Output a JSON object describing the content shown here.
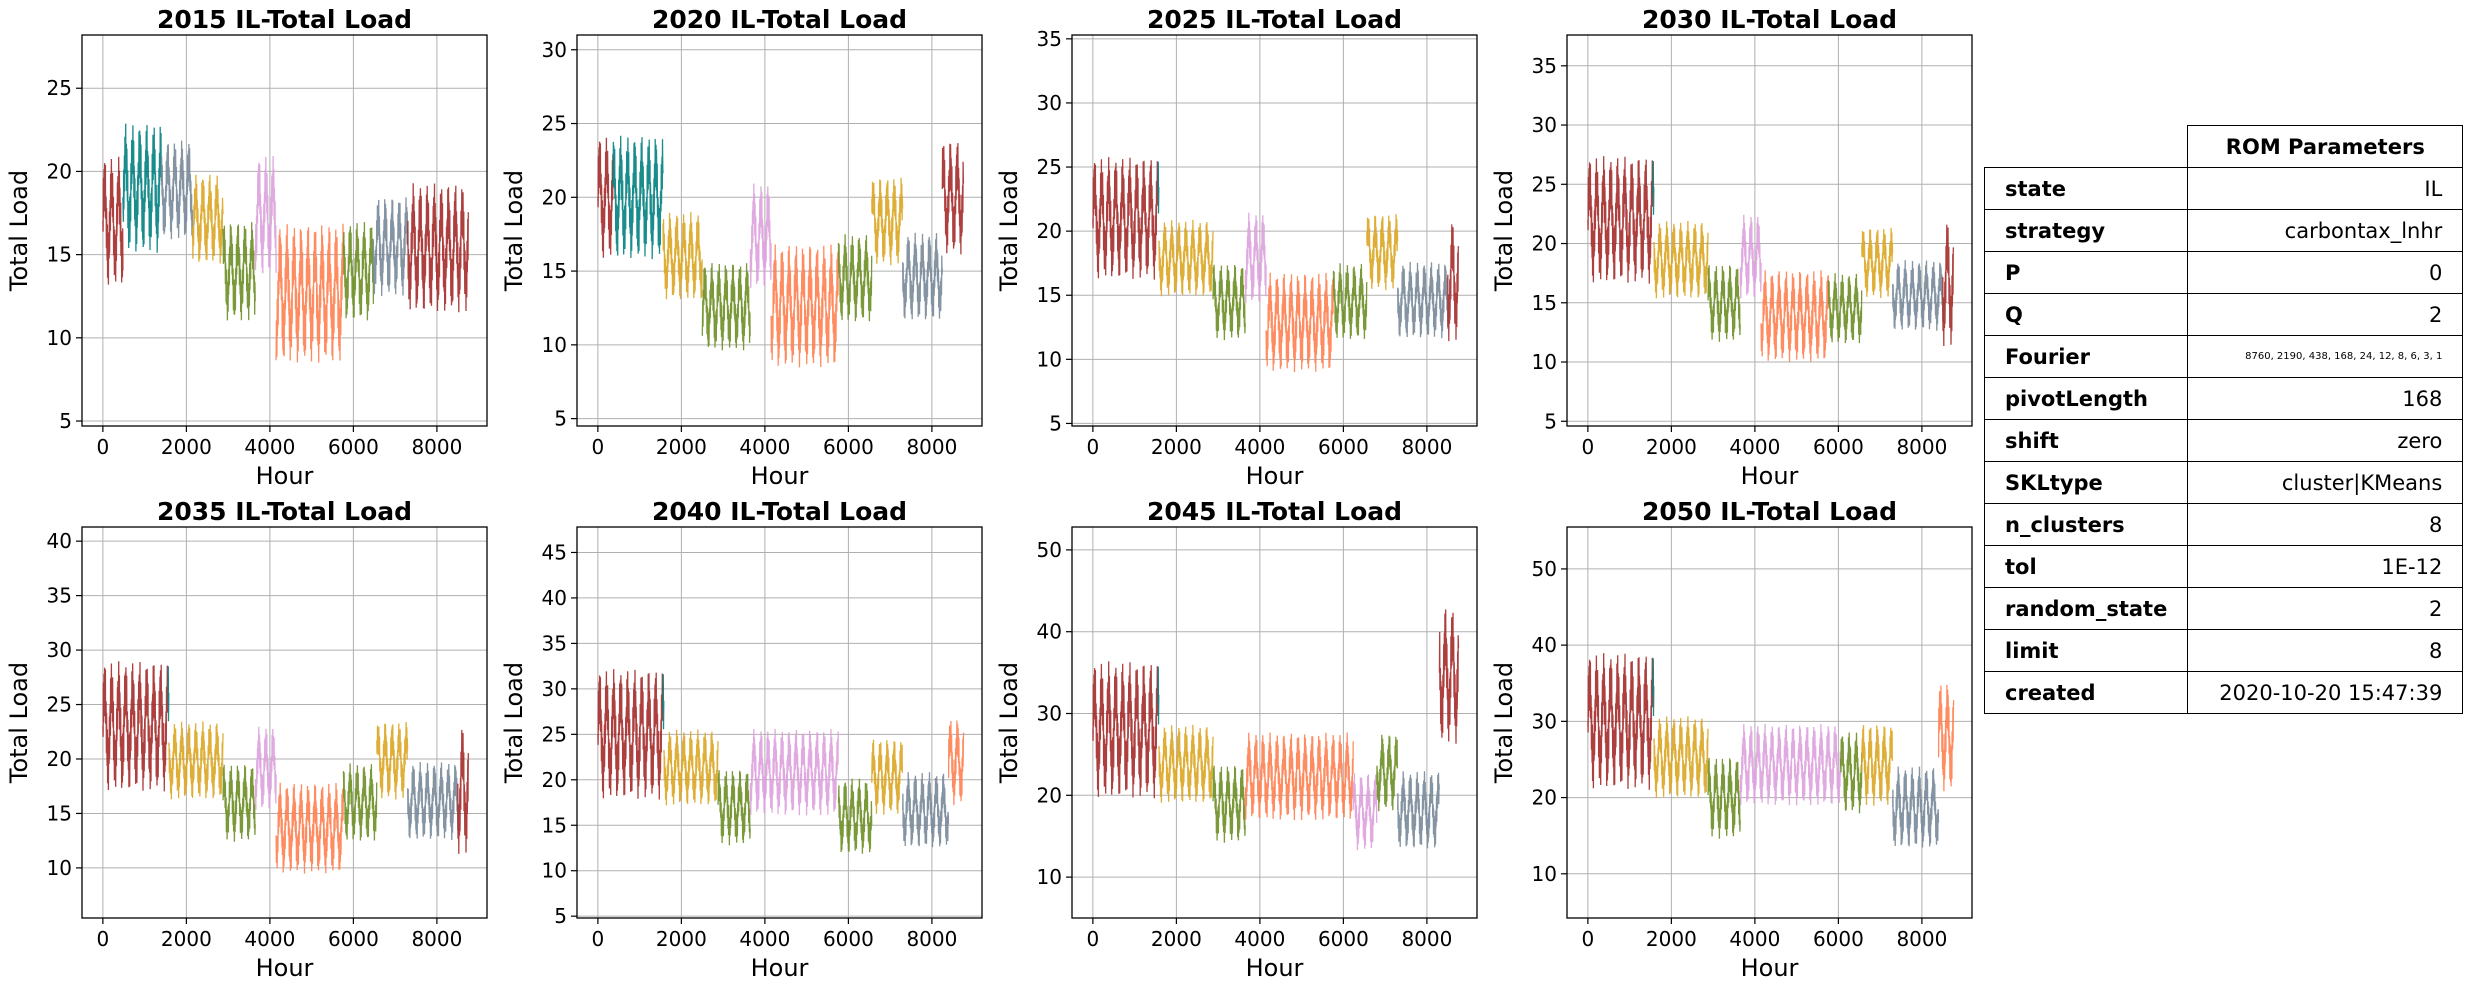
{
  "chart_data": [
    {
      "type": "line",
      "title": "2015 IL-Total Load",
      "xlabel": "Hour",
      "ylabel": "Total Load",
      "xlim": [
        -500,
        9200
      ],
      "ylim": [
        4.7,
        28.2
      ],
      "xticks": [
        0,
        2000,
        4000,
        6000,
        8000
      ],
      "yticks": [
        5,
        10,
        15,
        20,
        25
      ],
      "grid": true,
      "segments": [
        [
          0,
          480,
          "#a52a2a",
          17,
          6.5
        ],
        [
          480,
          1400,
          "#008080",
          19,
          6.5
        ],
        [
          1400,
          2150,
          "#778899",
          16.5,
          5
        ],
        [
          2150,
          2880,
          "#daa520",
          15,
          4.5
        ],
        [
          2880,
          3650,
          "#6b8e23",
          14,
          5
        ],
        [
          3650,
          4150,
          "#dda0dd",
          14.5,
          6
        ],
        [
          4150,
          5760,
          "#ff7f50",
          16,
          7
        ],
        [
          5760,
          6480,
          "#6b8e23",
          14,
          5
        ],
        [
          6480,
          7300,
          "#778899",
          15.5,
          5
        ],
        [
          7300,
          8760,
          "#a52a2a",
          18.5,
          6.5
        ]
      ]
    },
    {
      "type": "line",
      "title": "2020 IL-Total Load",
      "xlabel": "Hour",
      "ylabel": "Total Load",
      "xlim": [
        -500,
        9200
      ],
      "ylim": [
        4.5,
        31.0
      ],
      "xticks": [
        0,
        2000,
        4000,
        6000,
        8000
      ],
      "yticks": [
        5,
        10,
        15,
        20,
        25,
        30
      ],
      "grid": true,
      "segments": [
        [
          0,
          360,
          "#a52a2a",
          20,
          7
        ],
        [
          360,
          1560,
          "#008080",
          20,
          7
        ],
        [
          1560,
          2500,
          "#daa520",
          16,
          5
        ],
        [
          2500,
          3650,
          "#6b8e23",
          15,
          5
        ],
        [
          3650,
          4150,
          "#dda0dd",
          14.5,
          6
        ],
        [
          4150,
          5760,
          "#ff7f50",
          16,
          7
        ],
        [
          5760,
          6560,
          "#6b8e23",
          14.5,
          5
        ],
        [
          6560,
          7300,
          "#daa520",
          16,
          5
        ],
        [
          7300,
          8250,
          "#778899",
          17,
          5
        ],
        [
          8250,
          8760,
          "#a52a2a",
          20,
          6.5
        ]
      ]
    },
    {
      "type": "line",
      "title": "2025 IL-Total Load",
      "xlabel": "Hour",
      "ylabel": "Total Load",
      "xlim": [
        -500,
        9200
      ],
      "ylim": [
        4.8,
        35.3
      ],
      "xticks": [
        0,
        2000,
        4000,
        6000,
        8000
      ],
      "yticks": [
        5,
        10,
        15,
        20,
        25,
        30,
        35
      ],
      "grid": true,
      "segments": [
        [
          0,
          1560,
          "#a52a2a",
          21,
          8
        ],
        [
          1560,
          1580,
          "#008080",
          21,
          8
        ],
        [
          1580,
          2880,
          "#daa520",
          15.5,
          5
        ],
        [
          2880,
          3650,
          "#6b8e23",
          14.5,
          5
        ],
        [
          3650,
          4150,
          "#dda0dd",
          15,
          6
        ],
        [
          4150,
          5760,
          "#ff7f50",
          16,
          6.5
        ],
        [
          5760,
          6560,
          "#6b8e23",
          14.5,
          5
        ],
        [
          6560,
          7300,
          "#daa520",
          16,
          5
        ],
        [
          7300,
          8500,
          "#778899",
          17,
          5
        ],
        [
          8500,
          8760,
          "#a52a2a",
          20,
          8
        ]
      ]
    },
    {
      "type": "line",
      "title": "2030 IL-Total Load",
      "xlabel": "Hour",
      "ylabel": "Total Load",
      "xlim": [
        -500,
        9200
      ],
      "ylim": [
        4.6,
        37.6
      ],
      "xticks": [
        0,
        2000,
        4000,
        6000,
        8000
      ],
      "yticks": [
        5,
        10,
        15,
        20,
        25,
        30,
        35
      ],
      "grid": true,
      "segments": [
        [
          0,
          1560,
          "#a52a2a",
          22,
          9
        ],
        [
          1560,
          1580,
          "#008080",
          22,
          9
        ],
        [
          1580,
          2880,
          "#daa520",
          16,
          5.5
        ],
        [
          2880,
          3650,
          "#6b8e23",
          15,
          5.5
        ],
        [
          3650,
          4150,
          "#dda0dd",
          16,
          6
        ],
        [
          4150,
          5760,
          "#ff7f50",
          17,
          6.5
        ],
        [
          5760,
          6560,
          "#6b8e23",
          14.5,
          5
        ],
        [
          6560,
          7300,
          "#daa520",
          16,
          5
        ],
        [
          7300,
          8500,
          "#778899",
          18,
          5
        ],
        [
          8500,
          8760,
          "#a52a2a",
          21,
          9
        ]
      ]
    },
    {
      "type": "line",
      "title": "2035 IL-Total Load",
      "xlabel": "Hour",
      "ylabel": "Total Load",
      "xlim": [
        -500,
        9200
      ],
      "ylim": [
        5.4,
        41.3
      ],
      "xticks": [
        0,
        2000,
        4000,
        6000,
        8000
      ],
      "yticks": [
        10,
        15,
        20,
        25,
        30,
        35,
        40
      ],
      "grid": true,
      "segments": [
        [
          0,
          1560,
          "#a52a2a",
          23,
          10
        ],
        [
          1560,
          1580,
          "#008080",
          23,
          10
        ],
        [
          1580,
          2880,
          "#daa520",
          17,
          6
        ],
        [
          2880,
          3650,
          "#6b8e23",
          16,
          6
        ],
        [
          3650,
          4150,
          "#dda0dd",
          16,
          6.5
        ],
        [
          4150,
          5760,
          "#ff7f50",
          17,
          7
        ],
        [
          5760,
          6560,
          "#6b8e23",
          16,
          6
        ],
        [
          6560,
          7300,
          "#daa520",
          17,
          6
        ],
        [
          7300,
          8500,
          "#778899",
          19,
          6
        ],
        [
          8500,
          8760,
          "#a52a2a",
          22,
          10
        ]
      ]
    },
    {
      "type": "line",
      "title": "2040 IL-Total Load",
      "xlabel": "Hour",
      "ylabel": "Total Load",
      "xlim": [
        -500,
        9200
      ],
      "ylim": [
        4.8,
        47.8
      ],
      "xticks": [
        0,
        2000,
        4000,
        6000,
        8000
      ],
      "yticks": [
        5,
        10,
        15,
        20,
        25,
        30,
        35,
        40,
        45
      ],
      "grid": true,
      "segments": [
        [
          0,
          1560,
          "#a52a2a",
          25,
          12
        ],
        [
          1560,
          1580,
          "#008080",
          25,
          12
        ],
        [
          1580,
          2880,
          "#daa520",
          18,
          7
        ],
        [
          2880,
          3650,
          "#6b8e23",
          17,
          7
        ],
        [
          3650,
          5760,
          "#dda0dd",
          17,
          8
        ],
        [
          5760,
          6560,
          "#6b8e23",
          16,
          7
        ],
        [
          6560,
          7300,
          "#daa520",
          17,
          7
        ],
        [
          7300,
          8400,
          "#778899",
          20,
          7
        ],
        [
          8400,
          8760,
          "#ff7f50",
          22,
          8
        ]
      ]
    },
    {
      "type": "line",
      "title": "2045 IL-Total Load",
      "xlabel": "Hour",
      "ylabel": "Total Load",
      "xlim": [
        -500,
        9200
      ],
      "ylim": [
        5.0,
        52.8
      ],
      "xticks": [
        0,
        2000,
        4000,
        6000,
        8000
      ],
      "yticks": [
        10,
        20,
        30,
        40,
        50
      ],
      "grid": true,
      "segments": [
        [
          0,
          1560,
          "#a52a2a",
          28,
          14
        ],
        [
          1560,
          1580,
          "#008080",
          28,
          14
        ],
        [
          1580,
          2880,
          "#daa520",
          20,
          8
        ],
        [
          2880,
          3650,
          "#6b8e23",
          19,
          8
        ],
        [
          3650,
          6240,
          "#ff7f50",
          18,
          9
        ],
        [
          6240,
          6800,
          "#dda0dd",
          18,
          8
        ],
        [
          6800,
          7300,
          "#6b8e23",
          19,
          8
        ],
        [
          7300,
          8300,
          "#778899",
          22,
          8
        ],
        [
          8300,
          8760,
          "#a52a2a",
          28,
          14
        ]
      ]
    },
    {
      "type": "line",
      "title": "2050 IL-Total Load",
      "xlabel": "Hour",
      "ylabel": "Total Load",
      "xlim": [
        -500,
        9200
      ],
      "ylim": [
        4.2,
        55.5
      ],
      "xticks": [
        0,
        2000,
        4000,
        6000,
        8000
      ],
      "yticks": [
        10,
        20,
        30,
        40,
        50
      ],
      "grid": true,
      "segments": [
        [
          0,
          1560,
          "#a52a2a",
          30,
          15
        ],
        [
          1560,
          1580,
          "#008080",
          30,
          15
        ],
        [
          1580,
          2880,
          "#daa520",
          21,
          9
        ],
        [
          2880,
          3650,
          "#6b8e23",
          20,
          9
        ],
        [
          3650,
          6050,
          "#dda0dd",
          20,
          9
        ],
        [
          6050,
          6560,
          "#6b8e23",
          19,
          9
        ],
        [
          6560,
          7300,
          "#daa520",
          20,
          9
        ],
        [
          7300,
          8400,
          "#778899",
          23,
          9
        ],
        [
          8400,
          8760,
          "#ff7f50",
          28,
          12
        ]
      ]
    }
  ],
  "table": {
    "header": "ROM Parameters",
    "rows": [
      {
        "key": "state",
        "value": "IL"
      },
      {
        "key": "strategy",
        "value": "carbontax_lnhr"
      },
      {
        "key": "P",
        "value": "0"
      },
      {
        "key": "Q",
        "value": "2"
      },
      {
        "key": "Fourier",
        "value": "8760, 2190, 438, 168, 24, 12, 8, 6, 3, 1"
      },
      {
        "key": "pivotLength",
        "value": "168"
      },
      {
        "key": "shift",
        "value": "zero"
      },
      {
        "key": "SKLtype",
        "value": "cluster|KMeans"
      },
      {
        "key": "n_clusters",
        "value": "8"
      },
      {
        "key": "tol",
        "value": "1E-12"
      },
      {
        "key": "random_state",
        "value": "2"
      },
      {
        "key": "limit",
        "value": "8"
      },
      {
        "key": "created",
        "value": "2020-10-20 15:47:39"
      }
    ]
  }
}
